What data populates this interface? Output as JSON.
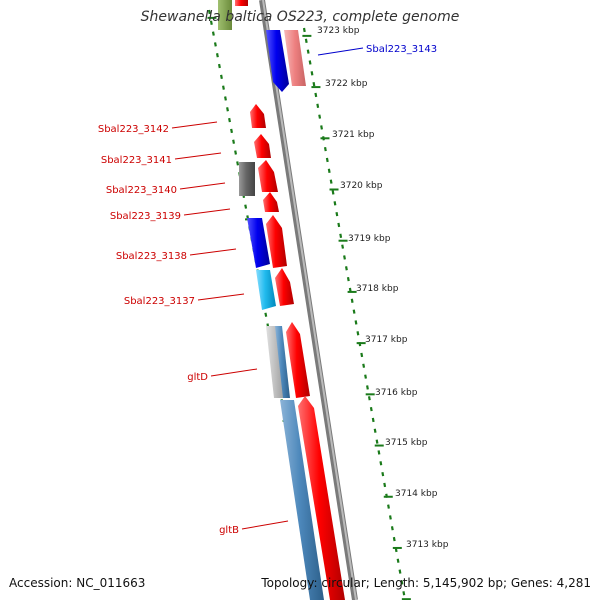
{
  "header": {
    "title": "Shewanella baltica OS223, complete genome"
  },
  "footer": {
    "accession": "Accession: NC_011663",
    "stats": "Topology: circular; Length: 5,145,902 bp; Genes: 4,281"
  },
  "ruler": {
    "unit": "kbp",
    "ticks": [
      "3723 kbp",
      "3722 kbp",
      "3721 kbp",
      "3720 kbp",
      "3719 kbp",
      "3718 kbp",
      "3717 kbp",
      "3716 kbp",
      "3715 kbp",
      "3714 kbp",
      "3713 kbp"
    ]
  },
  "genes": [
    {
      "label": "Sbal223_3143",
      "color": "#0000cc"
    },
    {
      "label": "Sbal223_3142",
      "color": "#cc0000"
    },
    {
      "label": "Sbal223_3141",
      "color": "#cc0000"
    },
    {
      "label": "Sbal223_3140",
      "color": "#cc0000"
    },
    {
      "label": "Sbal223_3139",
      "color": "#cc0000"
    },
    {
      "label": "Sbal223_3138",
      "color": "#cc0000"
    },
    {
      "label": "Sbal223_3137",
      "color": "#cc0000"
    },
    {
      "label": "gltD",
      "color": "#cc0000"
    },
    {
      "label": "gltB",
      "color": "#cc0000"
    }
  ],
  "colors": {
    "forward_cds": "#ff0000",
    "reverse_cds": "#0000ee",
    "light_cds": "#ee8080",
    "cyan_cds": "#22bbee",
    "steel_cds": "#4d88bb",
    "other_feature": "#666666",
    "backbone": "#888888",
    "dashes": "#1a7a1a"
  }
}
